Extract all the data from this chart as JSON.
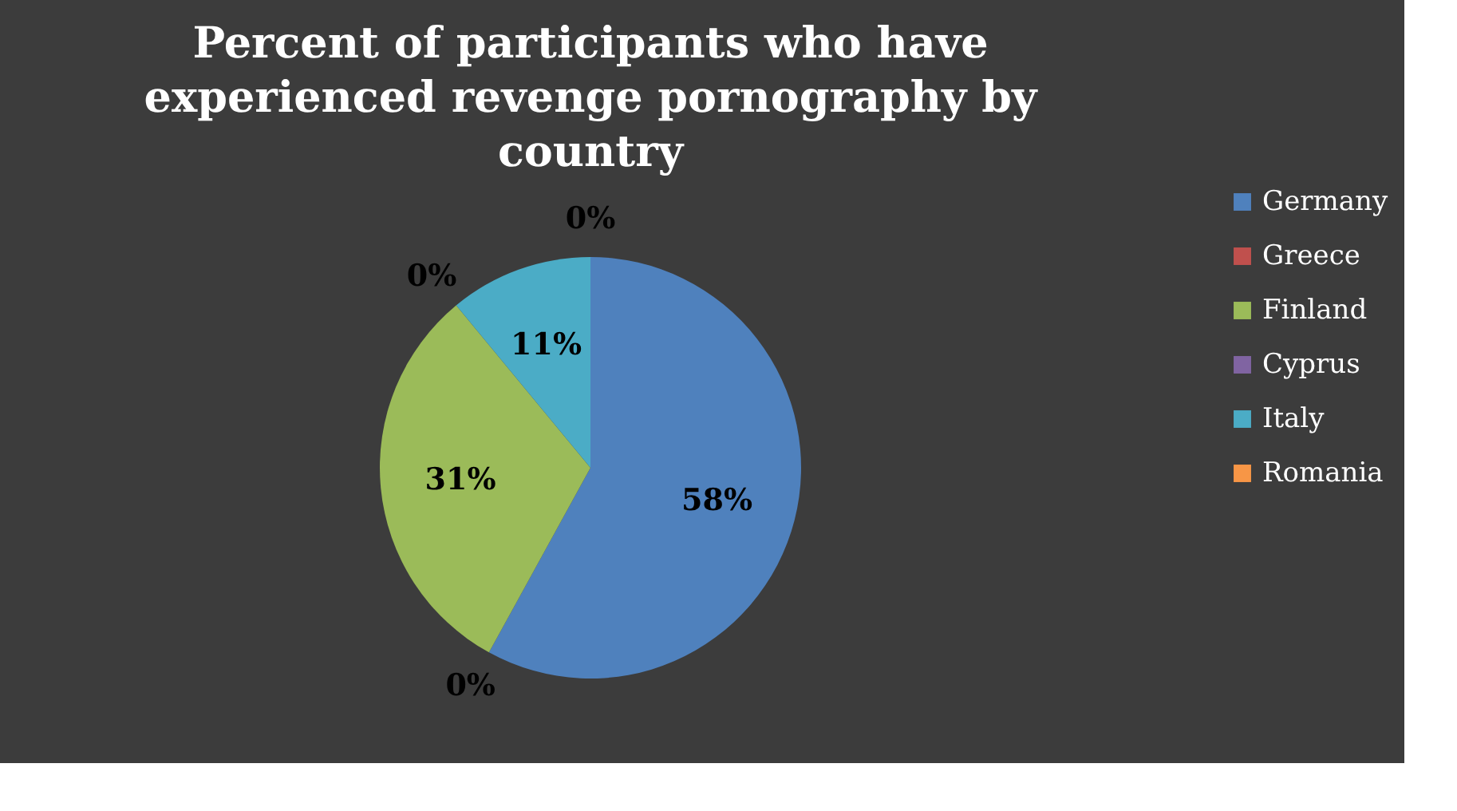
{
  "chart_data": {
    "type": "pie",
    "title": "Percent of participants who have experienced revenge pornography by country",
    "categories": [
      "Germany",
      "Greece",
      "Finland",
      "Cyprus",
      "Italy",
      "Romania"
    ],
    "values": [
      58,
      0,
      31,
      0,
      11,
      0
    ],
    "value_labels": [
      "58%",
      "0%",
      "31%",
      "0%",
      "11%",
      "0%"
    ],
    "colors": [
      "#4f81bd",
      "#c0504d",
      "#9bbb59",
      "#8064a2",
      "#4bacc6",
      "#f79646"
    ],
    "legend": "right"
  }
}
